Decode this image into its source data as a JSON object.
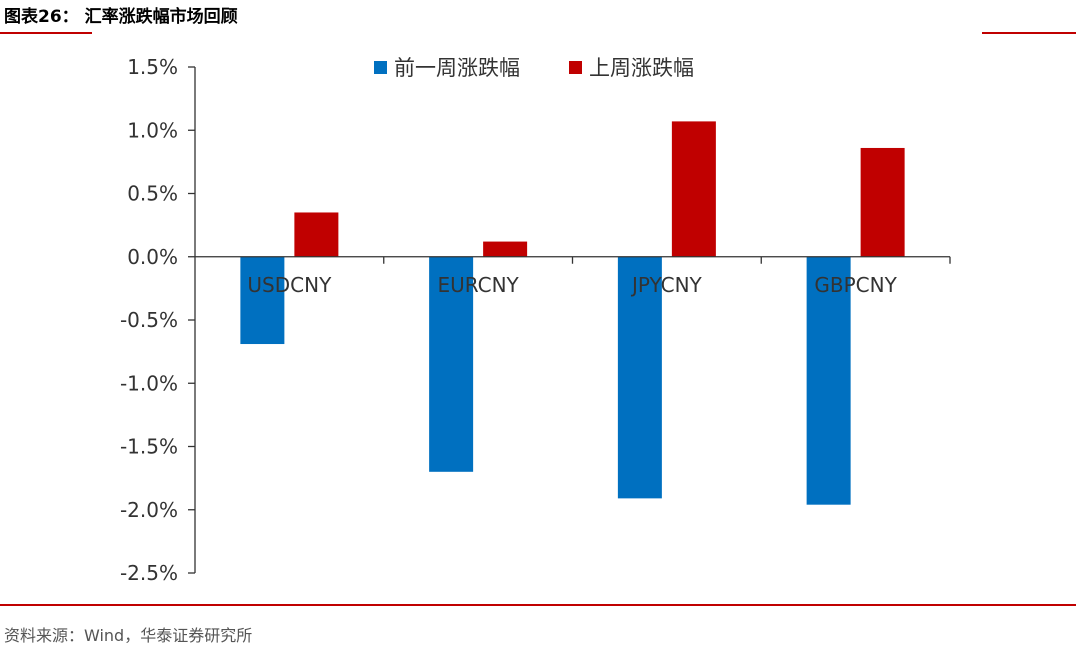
{
  "figure": {
    "number": "图表26：",
    "title": "汇率涨跌幅市场回顾",
    "source": "资料来源：Wind，华泰证券研究所"
  },
  "colors": {
    "accent": "#c00000",
    "series_prev": "#0070c0",
    "series_last": "#c00000"
  },
  "chart_data": {
    "type": "bar",
    "title": "",
    "xlabel": "",
    "ylabel": "",
    "categories": [
      "USDCNY",
      "EURCNY",
      "JPYCNY",
      "GBPCNY"
    ],
    "series": [
      {
        "name": "前一周涨跌幅",
        "color": "#0070c0",
        "values": [
          -0.69,
          -1.7,
          -1.91,
          -1.96
        ]
      },
      {
        "name": "上周涨跌幅",
        "color": "#c00000",
        "values": [
          0.35,
          0.12,
          1.07,
          0.86
        ]
      }
    ],
    "ylim": [
      -2.5,
      1.5
    ],
    "yticks": [
      1.5,
      1.0,
      0.5,
      0.0,
      -0.5,
      -1.0,
      -1.5,
      -2.0,
      -2.5
    ],
    "ytick_labels": [
      "1.5%",
      "1.0%",
      "0.5%",
      "0.0%",
      "-0.5%",
      "-1.0%",
      "-1.5%",
      "-2.0%",
      "-2.5%"
    ],
    "grid": false,
    "legend_position": "top-center"
  }
}
